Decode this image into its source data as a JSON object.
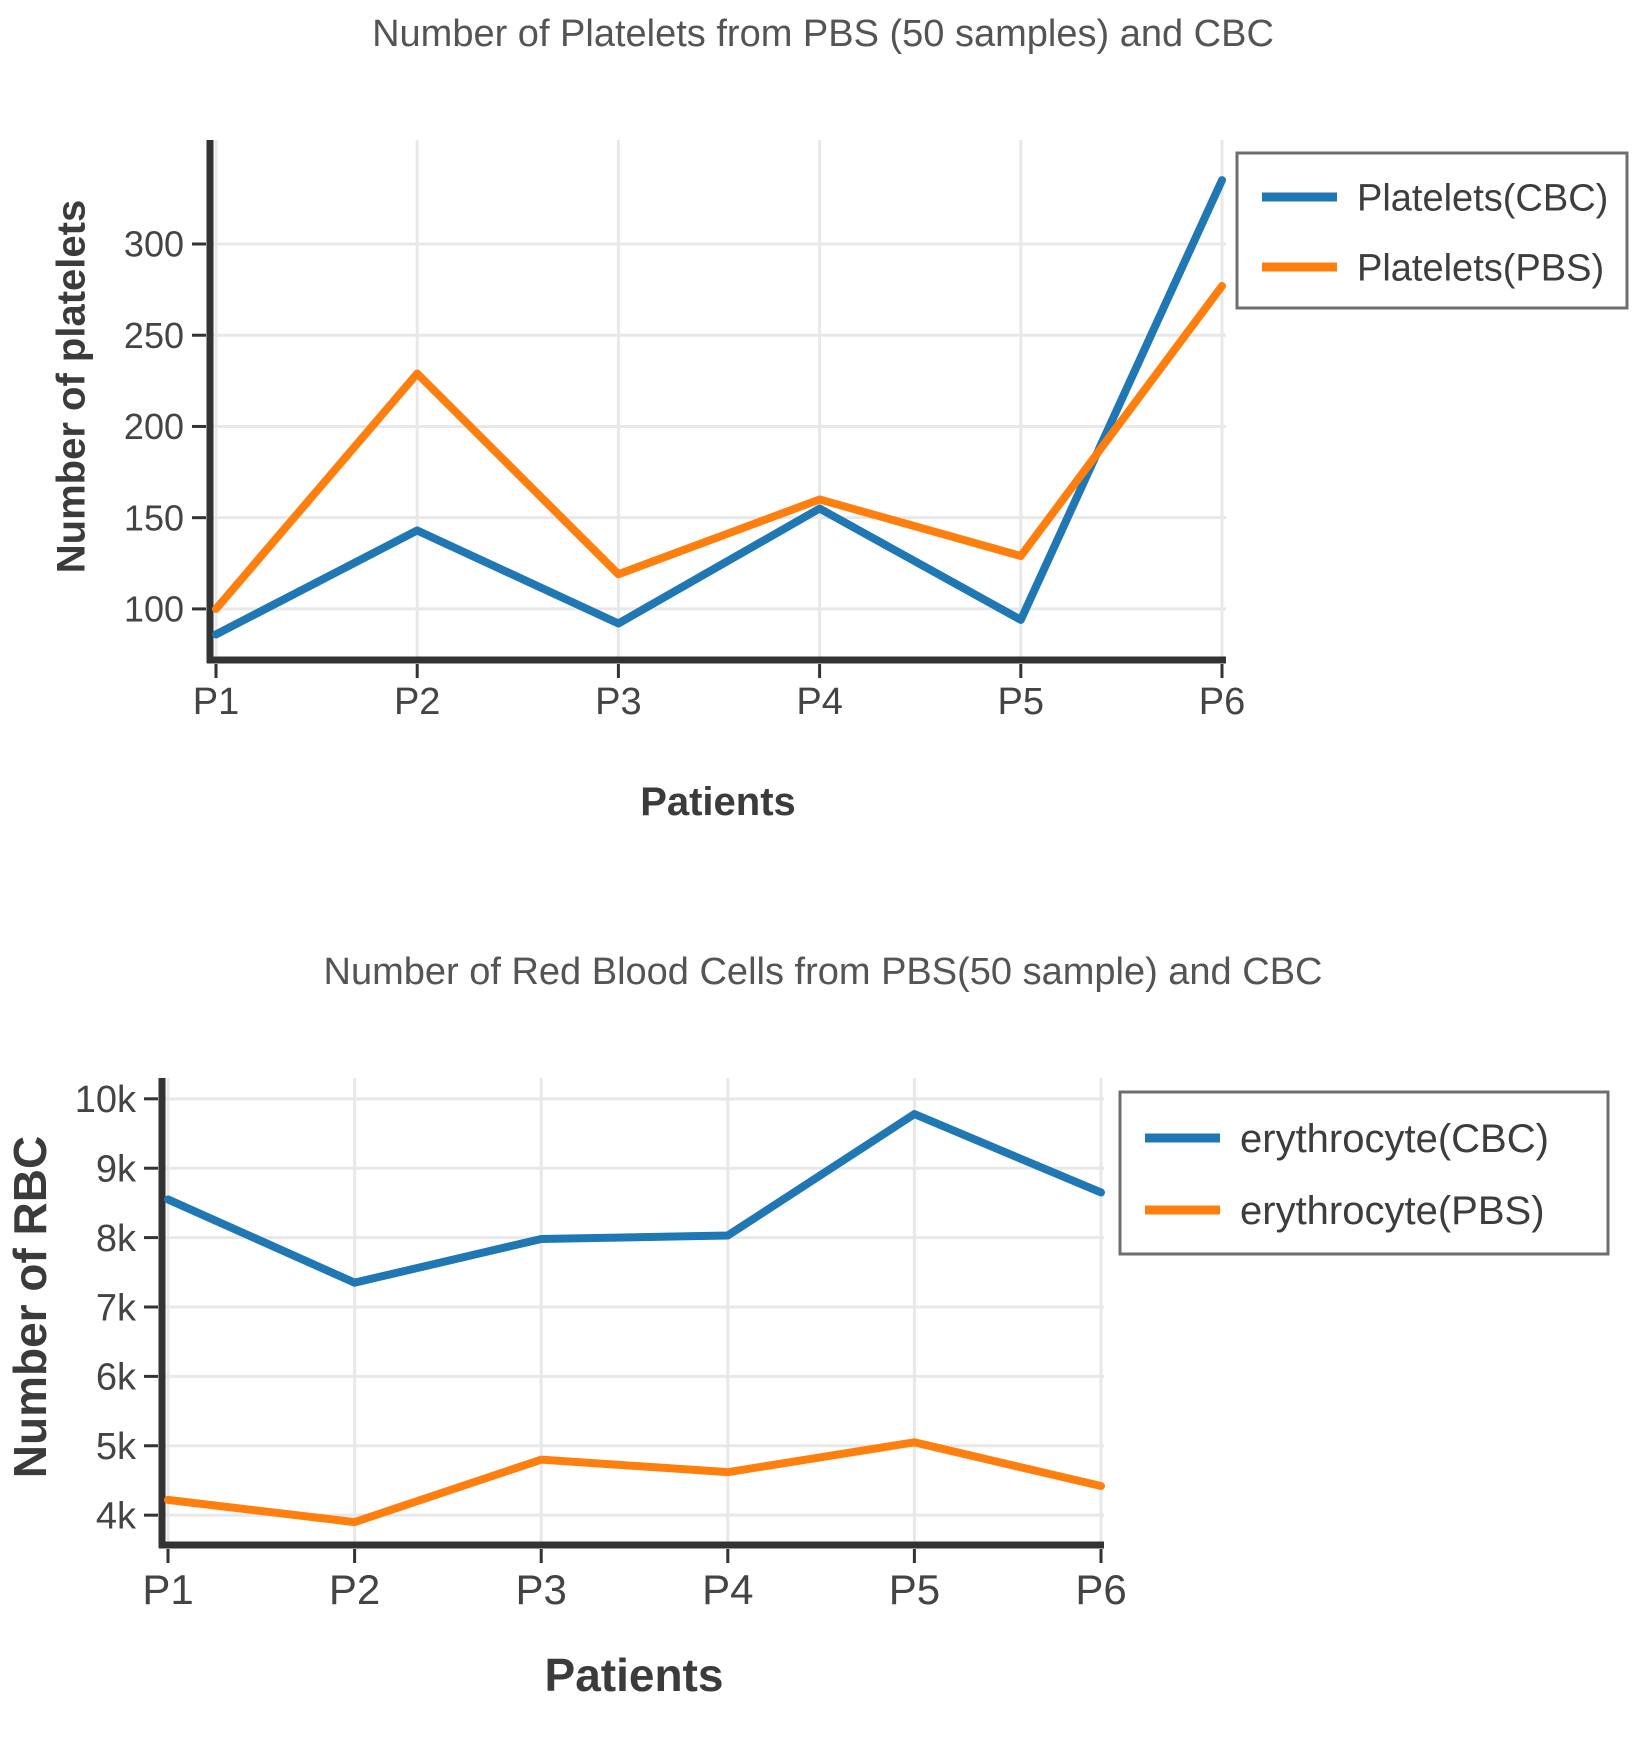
{
  "styles": {
    "background": "#ffffff",
    "series_blue": "#1f77b4",
    "series_orange": "#ff7f0e",
    "grid_color": "#e8e8e8",
    "axis_color": "#333333",
    "tick_text_color": "#444444",
    "title_color": "#545454",
    "axis_title_color": "#3b3b3b",
    "legend_border_color": "#6e6e6e",
    "legend_text_color": "#3d3d3d"
  },
  "chart_data": [
    {
      "type": "line",
      "title": "Number of Platelets from PBS (50 samples) and CBC",
      "xlabel": "Patients",
      "ylabel": "Number of platelets",
      "categories": [
        "P1",
        "P2",
        "P3",
        "P4",
        "P5",
        "P6"
      ],
      "series": [
        {
          "name": "Platelets(CBC)",
          "color": "#1f77b4",
          "values": [
            86,
            143,
            92,
            155,
            94,
            335
          ]
        },
        {
          "name": "Platelets(PBS)",
          "color": "#ff7f0e",
          "values": [
            100,
            229,
            119,
            160,
            129,
            277
          ]
        }
      ],
      "y_ticks": [
        {
          "value": 100,
          "label": "100"
        },
        {
          "value": 150,
          "label": "150"
        },
        {
          "value": 200,
          "label": "200"
        },
        {
          "value": 250,
          "label": "250"
        },
        {
          "value": 300,
          "label": "300"
        }
      ],
      "ylim": [
        72,
        357
      ],
      "grid": true,
      "legend_position": "top-right-outside"
    },
    {
      "type": "line",
      "title": "Number of Red Blood Cells from PBS(50 sample) and CBC",
      "xlabel": "Patients",
      "ylabel": "Number of RBC",
      "categories": [
        "P1",
        "P2",
        "P3",
        "P4",
        "P5",
        "P6"
      ],
      "series": [
        {
          "name": "erythrocyte(CBC)",
          "color": "#1f77b4",
          "values": [
            8550,
            7350,
            7980,
            8030,
            9780,
            8650
          ]
        },
        {
          "name": "erythrocyte(PBS)",
          "color": "#ff7f0e",
          "values": [
            4220,
            3900,
            4800,
            4620,
            5050,
            4420
          ]
        }
      ],
      "y_ticks": [
        {
          "value": 4000,
          "label": "4k"
        },
        {
          "value": 5000,
          "label": "5k"
        },
        {
          "value": 6000,
          "label": "6k"
        },
        {
          "value": 7000,
          "label": "7k"
        },
        {
          "value": 8000,
          "label": "8k"
        },
        {
          "value": 9000,
          "label": "9k"
        },
        {
          "value": 10000,
          "label": "10k"
        }
      ],
      "ylim": [
        3570,
        10300
      ],
      "grid": true,
      "legend_position": "top-right-outside"
    }
  ]
}
